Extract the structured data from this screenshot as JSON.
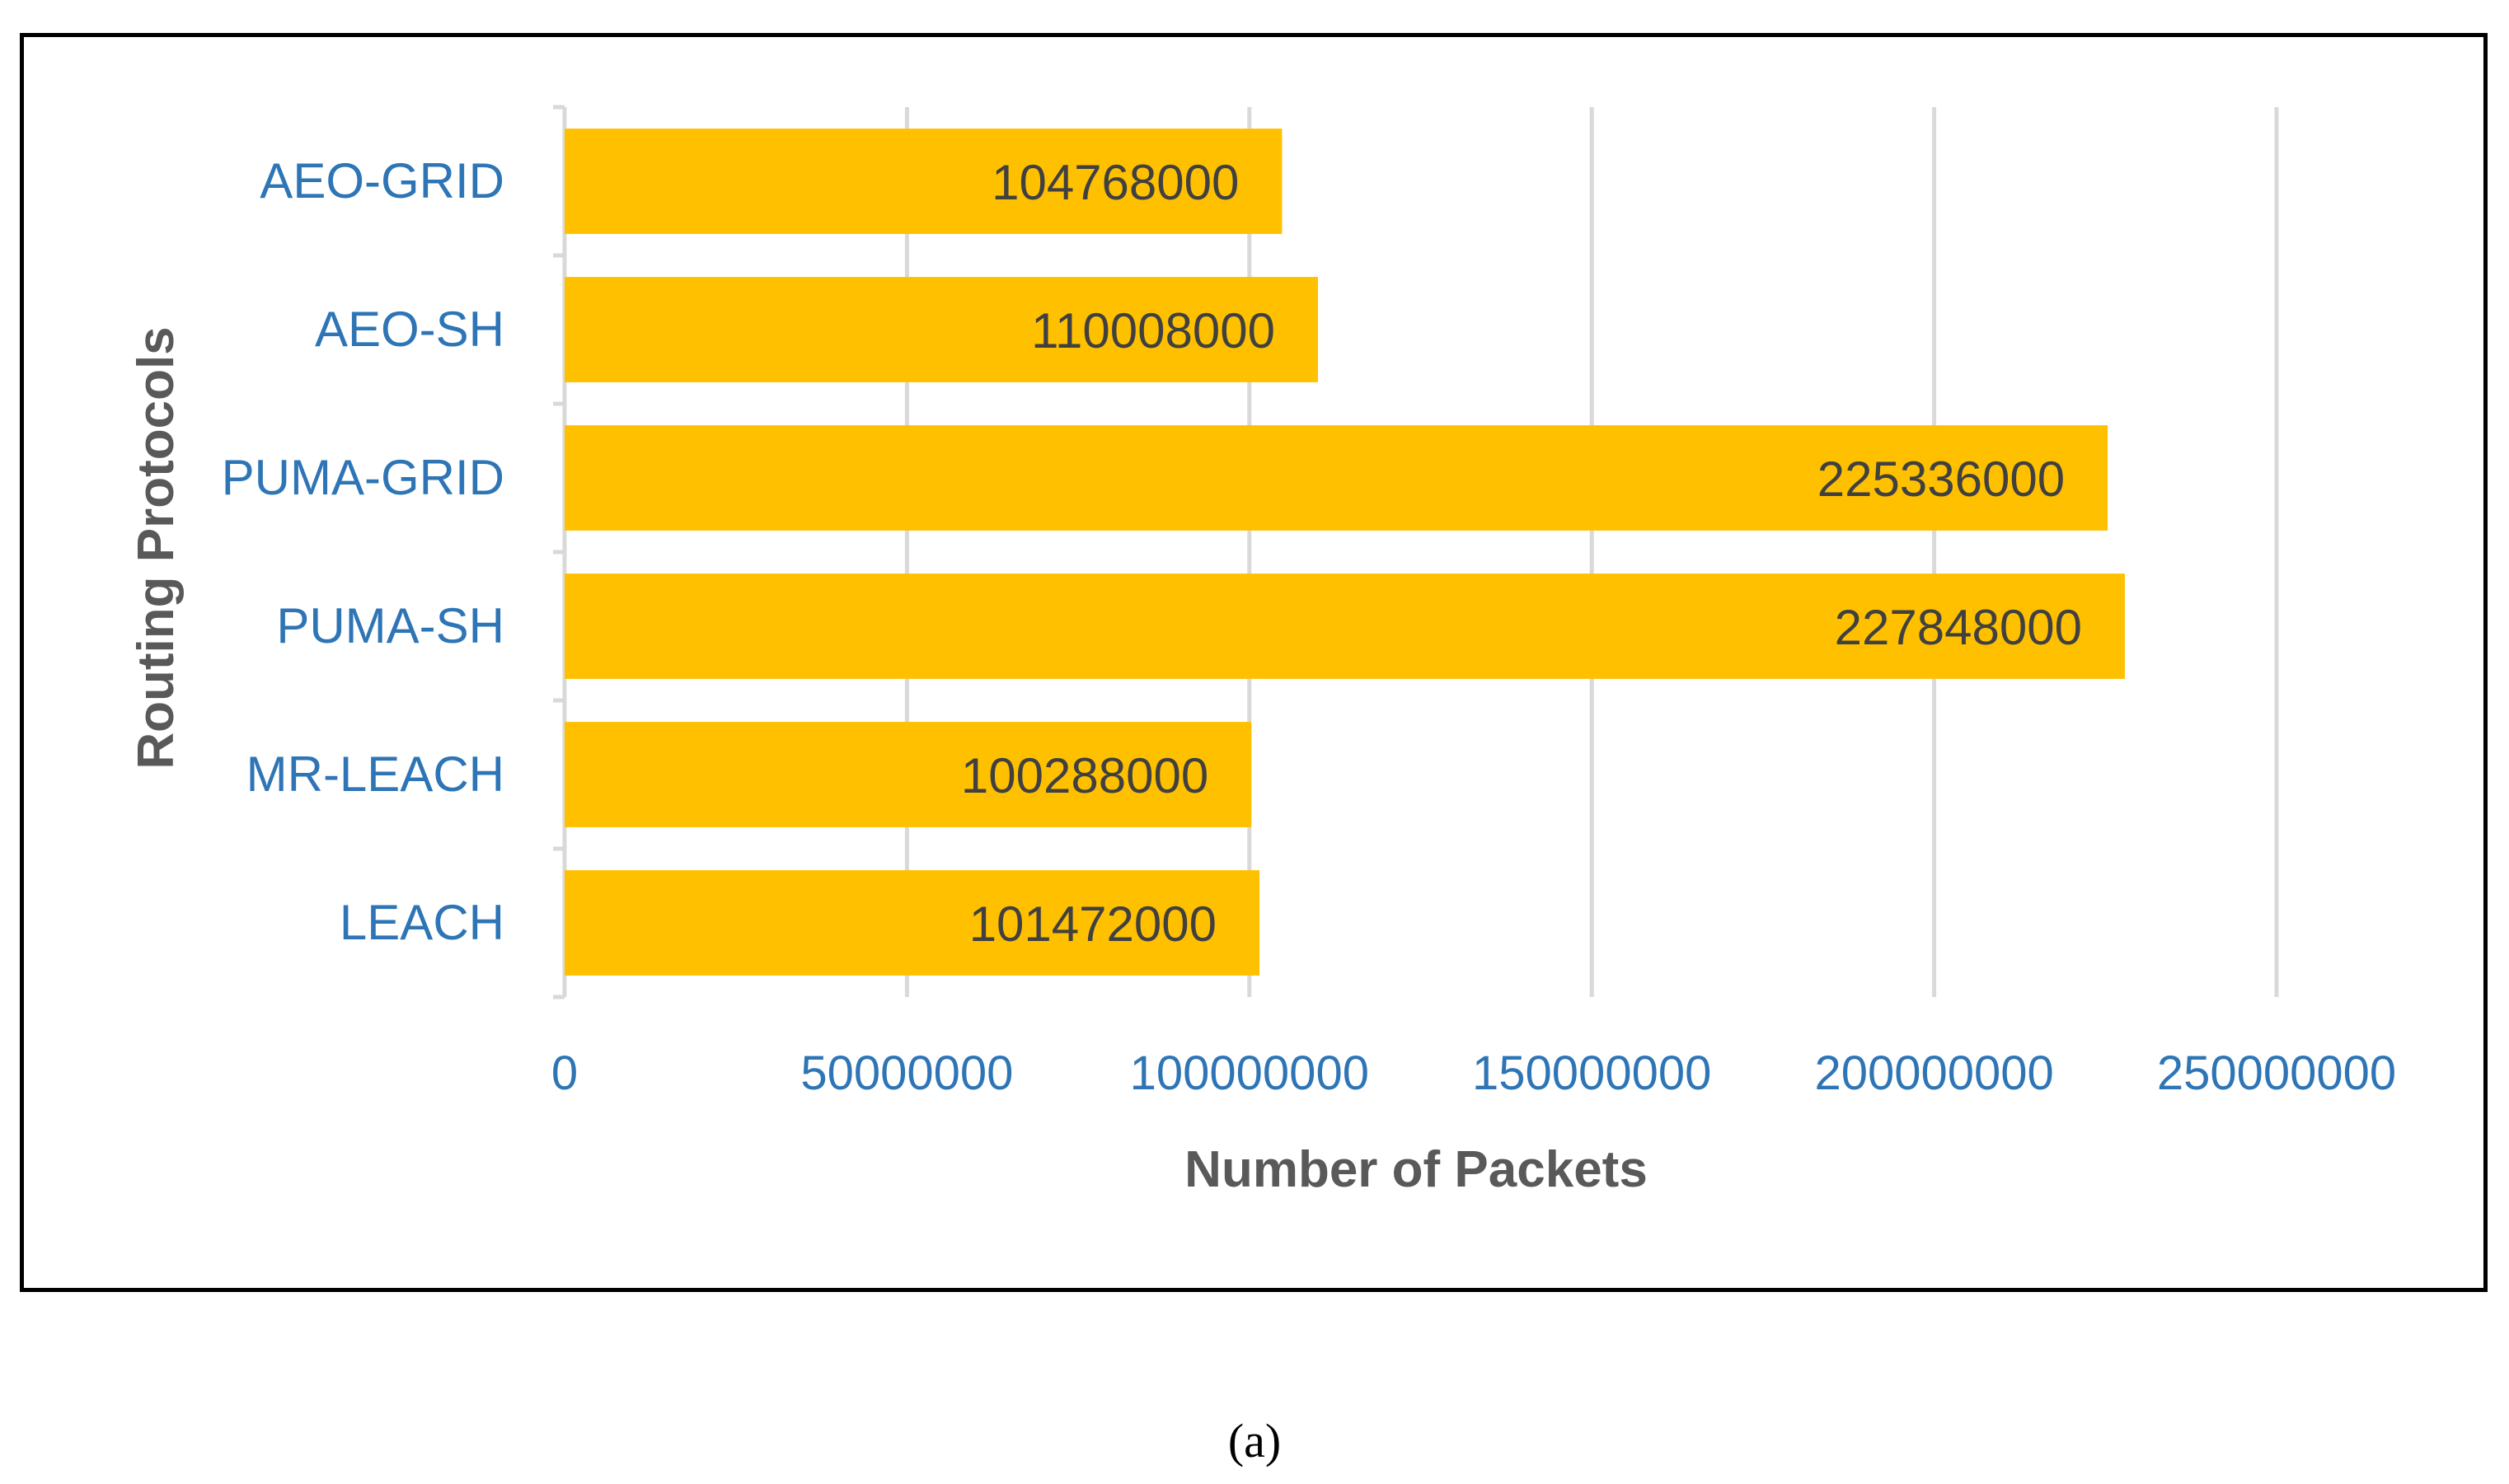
{
  "chart_data": {
    "type": "bar",
    "orientation": "horizontal",
    "categories": [
      "AEO-GRID",
      "AEO-SH",
      "PUMA-GRID",
      "PUMA-SH",
      "MR-LEACH",
      "LEACH"
    ],
    "values": [
      104768000,
      110008000,
      225336000,
      227848000,
      100288000,
      101472000
    ],
    "data_labels": [
      "104768000",
      "110008000",
      "225336000",
      "227848000",
      "100288000",
      "101472000"
    ],
    "x_ticks": [
      "0",
      "50000000",
      "100000000",
      "150000000",
      "200000000",
      "250000000"
    ],
    "xlim": [
      0,
      250000000
    ],
    "xlabel": "Number of Packets",
    "ylabel": "Routing Protocols",
    "title": "",
    "grid": "vertical",
    "legend": "none",
    "colors": {
      "bar": "#FFC000",
      "category_text": "#2E75B6",
      "axis_title": "#595959",
      "data_label": "#404040",
      "gridline": "#D9D9D9"
    }
  },
  "caption": "(a)"
}
